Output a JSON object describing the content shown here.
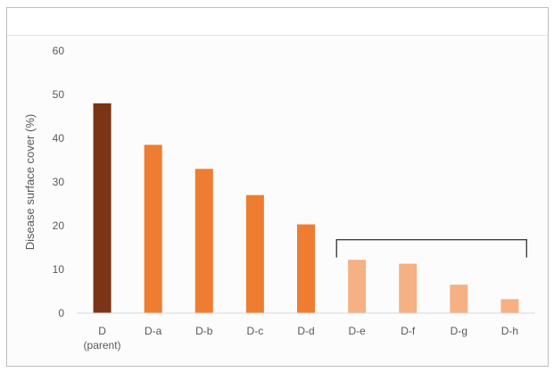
{
  "chart_data": {
    "type": "bar",
    "title": "",
    "xlabel": "",
    "ylabel": "Disease surface cover (%)",
    "ylim": [
      0,
      60
    ],
    "yticks": [
      0,
      10,
      20,
      30,
      40,
      50,
      60
    ],
    "grid": false,
    "categories": [
      {
        "id": "D",
        "lines": [
          "D",
          "(parent)"
        ]
      },
      {
        "id": "D-a",
        "lines": [
          "D-a"
        ]
      },
      {
        "id": "D-b",
        "lines": [
          "D-b"
        ]
      },
      {
        "id": "D-c",
        "lines": [
          "D-c"
        ]
      },
      {
        "id": "D-d",
        "lines": [
          "D-d"
        ]
      },
      {
        "id": "D-e",
        "lines": [
          "D-e"
        ]
      },
      {
        "id": "D-f",
        "lines": [
          "D-f"
        ]
      },
      {
        "id": "D-g",
        "lines": [
          "D-g"
        ]
      },
      {
        "id": "D-h",
        "lines": [
          "D-h"
        ]
      }
    ],
    "values": [
      48,
      38.5,
      33,
      27,
      20.3,
      12.2,
      11.3,
      6.5,
      3.2
    ],
    "bar_colors": [
      "#7b3415",
      "#ee7d31",
      "#ee7d31",
      "#ee7d31",
      "#ee7d31",
      "#f5b183",
      "#f5b183",
      "#f5b183",
      "#f5b183"
    ],
    "axis_color": "#d9d9d9",
    "bracket": {
      "from": "D-e",
      "to": "D-h",
      "level": 16.8,
      "color": "#404040"
    }
  }
}
